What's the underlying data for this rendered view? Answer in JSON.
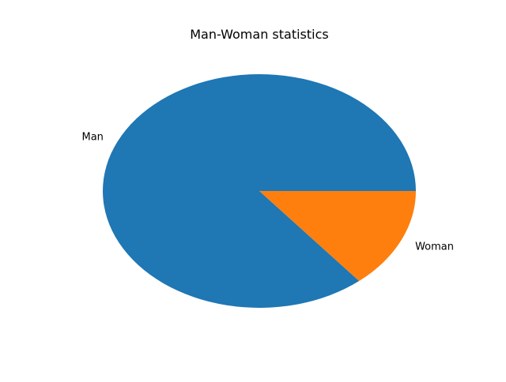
{
  "chart_data": {
    "type": "pie",
    "title": "Man-Woman statistics",
    "labels": [
      "Man",
      "Woman"
    ],
    "values": [
      86,
      14
    ],
    "colors": [
      "#1f77b4",
      "#ff7f0e"
    ],
    "start_angle_deg": 0,
    "direction": "counterclockwise"
  }
}
